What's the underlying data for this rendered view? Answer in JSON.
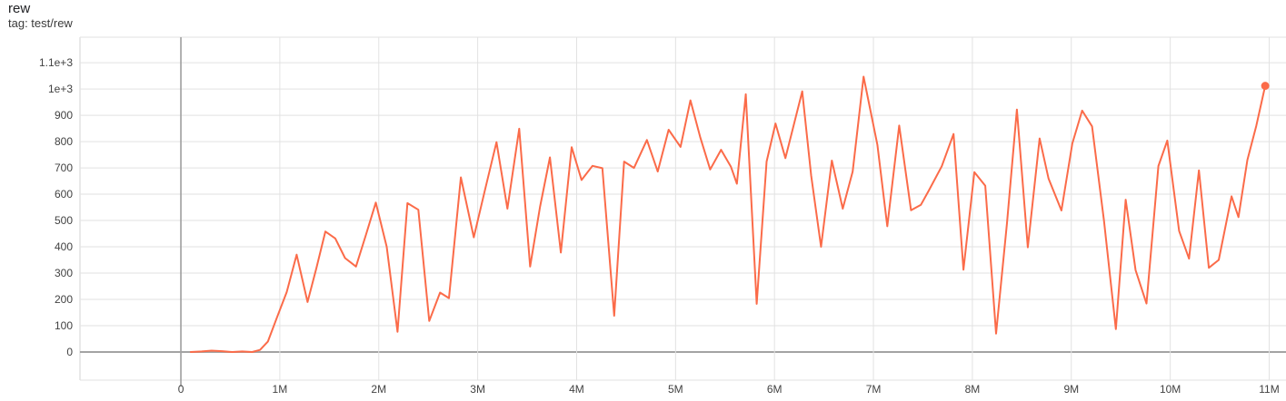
{
  "header": {
    "title": "rew",
    "subtitle": "tag: test/rew"
  },
  "colors": {
    "background": "#ffffff",
    "line": "#fb6b49",
    "grid": "#e2e2e2",
    "zero_axis": "#a3a3a3",
    "tick_label": "#424242",
    "title": "#202124",
    "subtitle": "#3a3a3a"
  },
  "chart_data": {
    "type": "line",
    "title": "rew",
    "tag": "test/rew",
    "grid": true,
    "legend_position": "none",
    "x_tick_labels": [
      "0",
      "1M",
      "2M",
      "3M",
      "4M",
      "5M",
      "6M",
      "7M",
      "8M",
      "9M",
      "10M",
      "11M"
    ],
    "x_tick_steps_M": [
      0,
      1,
      2,
      3,
      4,
      5,
      6,
      7,
      8,
      9,
      10,
      11
    ],
    "y_tick_labels": [
      "0",
      "100",
      "200",
      "300",
      "400",
      "500",
      "600",
      "700",
      "800",
      "900",
      "1e+3",
      "1.1e+3"
    ],
    "y_tick_values": [
      0,
      100,
      200,
      300,
      400,
      500,
      600,
      700,
      800,
      900,
      1000,
      1100
    ],
    "x_domain_M": [
      -1.02,
      11.17
    ],
    "y_domain": [
      -107,
      1197
    ],
    "series": [
      {
        "name": "test/rew",
        "color": "#fb6b49",
        "end_marker": true,
        "points_step_M_value": [
          [
            0.1,
            0
          ],
          [
            0.21,
            2
          ],
          [
            0.31,
            5
          ],
          [
            0.42,
            3
          ],
          [
            0.52,
            0
          ],
          [
            0.62,
            2
          ],
          [
            0.72,
            0
          ],
          [
            0.8,
            8
          ],
          [
            0.88,
            40
          ],
          [
            0.97,
            130
          ],
          [
            1.07,
            228
          ],
          [
            1.17,
            370
          ],
          [
            1.28,
            190
          ],
          [
            1.37,
            320
          ],
          [
            1.46,
            458
          ],
          [
            1.56,
            432
          ],
          [
            1.66,
            357
          ],
          [
            1.77,
            325
          ],
          [
            1.87,
            445
          ],
          [
            1.97,
            568
          ],
          [
            2.08,
            400
          ],
          [
            2.19,
            77
          ],
          [
            2.29,
            566
          ],
          [
            2.4,
            541
          ],
          [
            2.51,
            118
          ],
          [
            2.62,
            226
          ],
          [
            2.71,
            205
          ],
          [
            2.83,
            664
          ],
          [
            2.96,
            436
          ],
          [
            3.07,
            610
          ],
          [
            3.19,
            798
          ],
          [
            3.3,
            545
          ],
          [
            3.42,
            849
          ],
          [
            3.53,
            325
          ],
          [
            3.63,
            552
          ],
          [
            3.73,
            740
          ],
          [
            3.84,
            378
          ],
          [
            3.95,
            779
          ],
          [
            4.05,
            654
          ],
          [
            4.16,
            708
          ],
          [
            4.26,
            699
          ],
          [
            4.38,
            138
          ],
          [
            4.48,
            724
          ],
          [
            4.58,
            700
          ],
          [
            4.71,
            806
          ],
          [
            4.82,
            686
          ],
          [
            4.93,
            845
          ],
          [
            5.05,
            780
          ],
          [
            5.15,
            957
          ],
          [
            5.25,
            815
          ],
          [
            5.35,
            694
          ],
          [
            5.46,
            769
          ],
          [
            5.56,
            704
          ],
          [
            5.62,
            640
          ],
          [
            5.71,
            980
          ],
          [
            5.82,
            183
          ],
          [
            5.92,
            724
          ],
          [
            6.01,
            869
          ],
          [
            6.11,
            737
          ],
          [
            6.28,
            991
          ],
          [
            6.37,
            672
          ],
          [
            6.47,
            400
          ],
          [
            6.58,
            728
          ],
          [
            6.69,
            545
          ],
          [
            6.79,
            686
          ],
          [
            6.9,
            1047
          ],
          [
            7.04,
            788
          ],
          [
            7.14,
            478
          ],
          [
            7.26,
            861
          ],
          [
            7.38,
            539
          ],
          [
            7.48,
            560
          ],
          [
            7.56,
            614
          ],
          [
            7.69,
            706
          ],
          [
            7.81,
            829
          ],
          [
            7.91,
            313
          ],
          [
            8.02,
            684
          ],
          [
            8.13,
            632
          ],
          [
            8.24,
            70
          ],
          [
            8.35,
            490
          ],
          [
            8.45,
            922
          ],
          [
            8.56,
            398
          ],
          [
            8.68,
            812
          ],
          [
            8.77,
            660
          ],
          [
            8.9,
            538
          ],
          [
            9.01,
            793
          ],
          [
            9.11,
            918
          ],
          [
            9.21,
            858
          ],
          [
            9.33,
            500
          ],
          [
            9.45,
            87
          ],
          [
            9.55,
            579
          ],
          [
            9.65,
            311
          ],
          [
            9.76,
            184
          ],
          [
            9.88,
            707
          ],
          [
            9.97,
            804
          ],
          [
            10.09,
            460
          ],
          [
            10.19,
            355
          ],
          [
            10.29,
            691
          ],
          [
            10.39,
            320
          ],
          [
            10.49,
            350
          ],
          [
            10.62,
            592
          ],
          [
            10.69,
            513
          ],
          [
            10.78,
            730
          ],
          [
            10.87,
            860
          ],
          [
            10.96,
            1012
          ]
        ]
      }
    ]
  }
}
